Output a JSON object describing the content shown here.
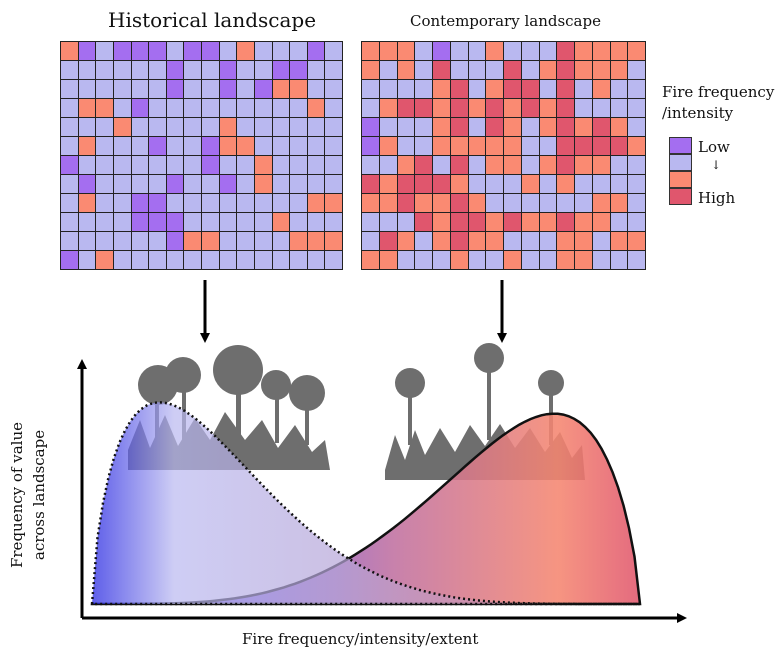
{
  "titles": {
    "historical": "Historical landscape",
    "contemporary": "Contemporary landscape"
  },
  "legend": {
    "title_line1": "Fire frequency",
    "title_line2": "/intensity",
    "low": "Low",
    "arrow": "↓",
    "high": "High",
    "colors": [
      "#a46ef0",
      "#b9b8f0",
      "#fa8a72",
      "#e0566d"
    ]
  },
  "axes": {
    "x_label": "Fire frequency/intensity/extent",
    "y_label_line1": "Frequency of value",
    "y_label_line2": "across landscape"
  },
  "grids": {
    "historical": [
      "3121112112322212",
      "2222221221221122",
      "2222221221213322",
      "2332122222222232",
      "2223222223222222",
      "2322212213322222",
      "1222222212232222",
      "2122221221232222",
      "2322112222222233",
      "2222111222223222",
      "2222221332222333",
      "1232222222222222"
    ],
    "contemporary": [
      "3332122322243333",
      "3232422242343332",
      "2222342344242322",
      "2344343434342222",
      "1222342432343432",
      "1322333332244443",
      "2234242332343322",
      "4344432223232222",
      "3343343222222332",
      "2224344343343322",
      "2432343322233233",
      "3322232232233222"
    ]
  }
}
